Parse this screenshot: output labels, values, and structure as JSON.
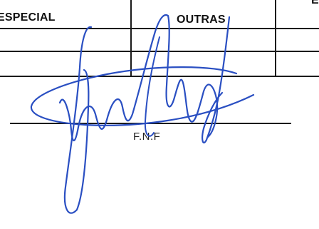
{
  "form_table": {
    "column_left_label": "ESPECIAL",
    "column_middle_label": "OUTRAS",
    "column_right_label_fragment": "E"
  },
  "signature_block": {
    "caption": "F.N.F",
    "ink_color": "#2a4fc2"
  }
}
